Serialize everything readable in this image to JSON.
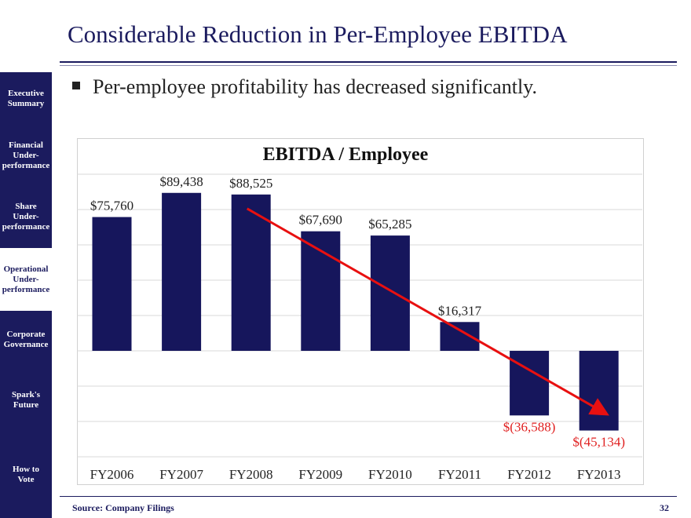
{
  "sidebar": {
    "items": [
      {
        "label": "Executive\nSummary",
        "active": false
      },
      {
        "label": "Financial\nUnder-\nperformance",
        "active": false
      },
      {
        "label": "Share\nUnder-\nperformance",
        "active": false
      },
      {
        "label": "Operational\nUnder-\nperformance",
        "active": true
      },
      {
        "label": "Corporate\nGovernance",
        "active": false
      },
      {
        "label": "Spark's\nFuture",
        "active": false
      },
      {
        "label": "How to\nVote",
        "active": false
      }
    ]
  },
  "slide": {
    "title": "Considerable Reduction in Per-Employee EBITDA",
    "bullet": "Per-employee profitability has decreased significantly.",
    "source": "Source: Company Filings",
    "page_number": "32"
  },
  "colors": {
    "navy": "#1b1b5e",
    "bar": "#16165c",
    "negative_label": "#e02020",
    "trend": "#e81010"
  },
  "chart_data": {
    "type": "bar",
    "title": "EBITDA / Employee",
    "categories": [
      "FY2006",
      "FY2007",
      "FY2008",
      "FY2009",
      "FY2010",
      "FY2011",
      "FY2012",
      "FY2013"
    ],
    "values": [
      75760,
      89438,
      88525,
      67690,
      65285,
      16317,
      -36588,
      -45134
    ],
    "data_labels": [
      "$75,760",
      "$89,438",
      "$88,525",
      "$67,690",
      "$65,285",
      "$16,317",
      "$(36,588)",
      "$(45,134)"
    ],
    "ylim": [
      -60000,
      100000
    ],
    "grid": true,
    "legend": "none",
    "trend_line": {
      "from_category": "FY2008",
      "to_category": "FY2013"
    }
  }
}
